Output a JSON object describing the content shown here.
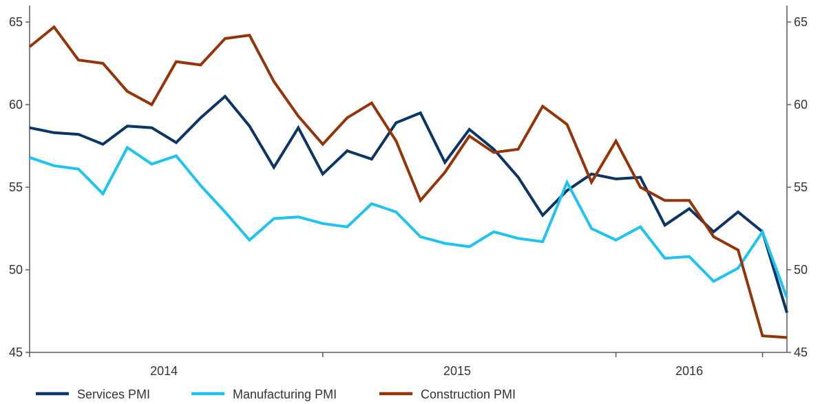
{
  "chart_data": {
    "type": "line",
    "title": "",
    "xlabel": "",
    "ylabel": "",
    "ylim": [
      45,
      66
    ],
    "y_ticks": [
      45,
      50,
      55,
      60,
      65
    ],
    "x_start": "2013-10",
    "x_tick_labels": [
      {
        "label": "2014",
        "month_index": 5.5
      },
      {
        "label": "2015",
        "month_index": 17.5
      },
      {
        "label": "2016",
        "month_index": 27.0
      }
    ],
    "x_tick_marks": [
      0,
      12,
      24,
      30
    ],
    "legend_position": "bottom",
    "grid": false,
    "series": [
      {
        "name": "Services PMI",
        "color": "#0b3564",
        "values": [
          58.6,
          58.3,
          58.2,
          57.6,
          58.7,
          58.6,
          57.7,
          59.2,
          60.5,
          58.7,
          56.2,
          58.6,
          55.8,
          57.2,
          56.7,
          58.9,
          59.5,
          56.5,
          58.5,
          57.3,
          55.6,
          53.3,
          54.8,
          55.8,
          55.5,
          55.6,
          52.7,
          53.7,
          52.3,
          53.5,
          52.3,
          47.4
        ]
      },
      {
        "name": "Manufacturing PMI",
        "color": "#1ec3f0",
        "values": [
          56.8,
          56.3,
          56.1,
          54.6,
          57.4,
          56.4,
          56.9,
          55.1,
          53.5,
          51.8,
          53.1,
          53.2,
          52.8,
          52.6,
          54.0,
          53.5,
          52.0,
          51.6,
          51.4,
          52.3,
          51.9,
          51.7,
          55.3,
          52.5,
          51.8,
          52.6,
          50.7,
          50.8,
          49.3,
          50.1,
          52.3,
          48.3
        ]
      },
      {
        "name": "Construction PMI",
        "color": "#943509",
        "values": [
          63.5,
          64.7,
          62.7,
          62.5,
          60.8,
          60.0,
          62.6,
          62.4,
          64.0,
          64.2,
          61.4,
          59.3,
          57.6,
          59.2,
          60.1,
          57.8,
          54.2,
          55.9,
          58.1,
          57.1,
          57.3,
          59.9,
          58.8,
          55.3,
          57.8,
          55.0,
          54.2,
          54.2,
          52.0,
          51.2,
          46.0,
          45.9
        ]
      }
    ]
  }
}
